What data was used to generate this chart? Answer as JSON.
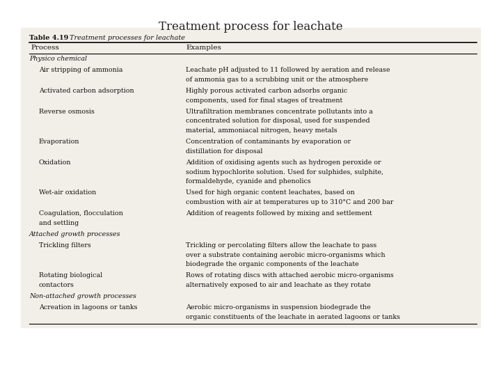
{
  "title": "Treatment process for leachate",
  "table_title_bold": "Table 4.19",
  "table_title_italic": "Treatment processes for leachate",
  "col1_header": "Process",
  "col2_header": "Examples",
  "rows": [
    {
      "process": "Physico chemical",
      "example": "",
      "italic": true,
      "indent": 0
    },
    {
      "process": "Air stripping of ammonia",
      "example": "Leachate pH adjusted to 11 followed by aeration and release\nof ammonia gas to a scrubbing unit or the atmosphere",
      "italic": false,
      "indent": 1
    },
    {
      "process": "Activated carbon adsorption",
      "example": "Highly porous activated carbon adsorbs organic\ncomponents, used for final stages of treatment",
      "italic": false,
      "indent": 1
    },
    {
      "process": "Reverse osmosis",
      "example": "Ultrafiltration membranes concentrate pollutants into a\nconcentrated solution for disposal, used for suspended\nmaterial, ammoniacal nitrogen, heavy metals",
      "italic": false,
      "indent": 1
    },
    {
      "process": "Evaporation",
      "example": "Concentration of contaminants by evaporation or\ndistillation for disposal",
      "italic": false,
      "indent": 1
    },
    {
      "process": "Oxidation",
      "example": "Addition of oxidising agents such as hydrogen peroxide or\nsodium hypochlorite solution. Used for sulphides, sulphite,\nformaldehyde, cyanide and phenolics",
      "italic": false,
      "indent": 1
    },
    {
      "process": "Wet-air oxidation",
      "example": "Used for high organic content leachates, based on\ncombustion with air at temperatures up to 310°C and 200 bar",
      "italic": false,
      "indent": 1
    },
    {
      "process": "Coagulation, flocculation\nand settling",
      "example": "Addition of reagents followed by mixing and settlement",
      "italic": false,
      "indent": 1
    },
    {
      "process": "Attached growth processes",
      "example": "",
      "italic": true,
      "indent": 0
    },
    {
      "process": "Trickling filters",
      "example": "Trickling or percolating filters allow the leachate to pass\nover a substrate containing aerobic micro-organisms which\nbiodegrade the organic components of the leachate",
      "italic": false,
      "indent": 1
    },
    {
      "process": "Rotating biological\ncontactors",
      "example": "Rows of rotating discs with attached aerobic micro-organisms\nalternatively exposed to air and leachate as they rotate",
      "italic": false,
      "indent": 1
    },
    {
      "process": "Non-attached growth processes",
      "example": "",
      "italic": true,
      "indent": 0
    },
    {
      "process": "Acreation in lagoons or tanks",
      "example": "Aerobic micro-organisms in suspension biodegrade the\norganic constituents of the leachate in aerated lagoons or tanks",
      "italic": false,
      "indent": 1
    }
  ],
  "bg_color": "#f0ede8",
  "page_color": "#f0ede8",
  "text_color": "#111111",
  "title_color": "#222222"
}
